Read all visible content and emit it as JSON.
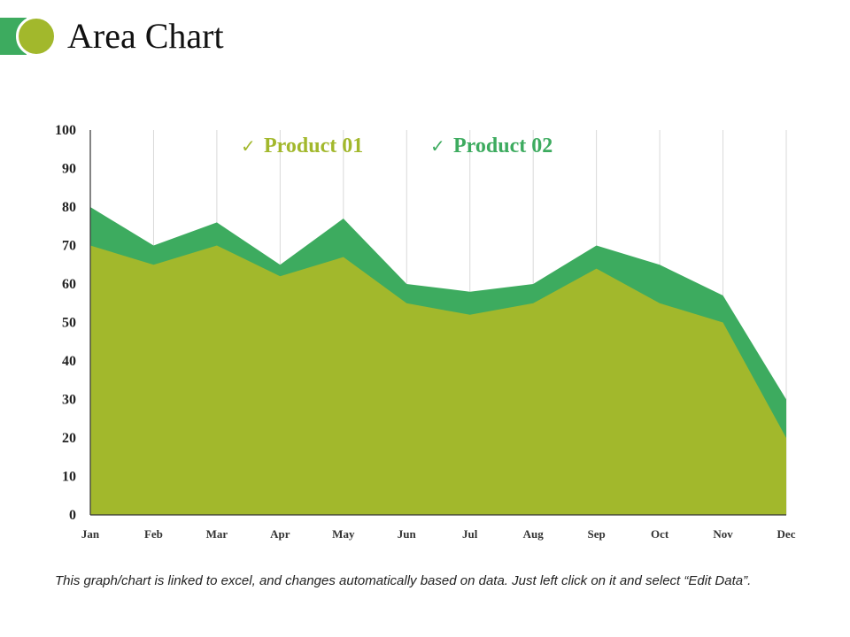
{
  "page": {
    "title": "Area Chart",
    "footnote": "This graph/chart is linked to excel, and changes automatically based on data. Just left click on it and select “Edit Data”."
  },
  "colors": {
    "accent_green": "#3dab5f",
    "accent_olive": "#a2b82c",
    "gridline": "#d9d9d9",
    "axis": "#333333"
  },
  "chart_data": {
    "type": "area",
    "title": "",
    "xlabel": "",
    "ylabel": "",
    "ylim": [
      0,
      100
    ],
    "yticks": [
      0,
      10,
      20,
      30,
      40,
      50,
      60,
      70,
      80,
      90,
      100
    ],
    "grid": "vertical",
    "legend_position": "top-center",
    "categories": [
      "Jan",
      "Feb",
      "Mar",
      "Apr",
      "May",
      "Jun",
      "Jul",
      "Aug",
      "Sep",
      "Oct",
      "Nov",
      "Dec"
    ],
    "series": [
      {
        "name": "Product 01",
        "color": "#a2b82c",
        "legend_marker": "✓",
        "values": [
          70,
          65,
          70,
          62,
          67,
          55,
          52,
          55,
          64,
          55,
          50,
          20
        ]
      },
      {
        "name": "Product 02",
        "color": "#3dab5f",
        "legend_marker": "✓",
        "values": [
          80,
          70,
          76,
          65,
          77,
          60,
          58,
          60,
          70,
          65,
          57,
          30
        ]
      }
    ]
  }
}
